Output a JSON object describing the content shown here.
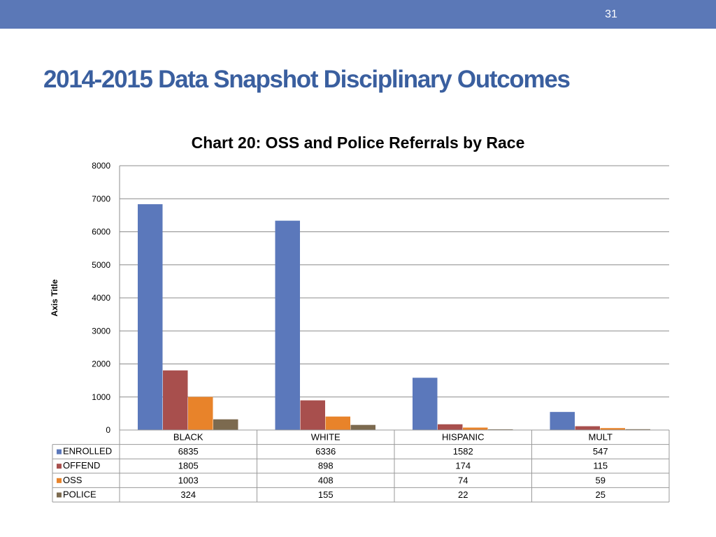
{
  "header": {
    "page_number": "31"
  },
  "slide": {
    "title": "2014-2015 Data Snapshot Disciplinary Outcomes"
  },
  "colors": {
    "ENROLLED": "#5b78bb",
    "OFFEND": "#a84f4d",
    "OSS": "#e8832a",
    "POLICE": "#7c6a4f",
    "banner": "#5b78b7",
    "title": "#3a5f9f"
  },
  "chart_data": {
    "type": "bar",
    "title": "Chart 20: OSS and Police Referrals by Race",
    "xlabel": "",
    "ylabel": "Axis Title",
    "ylim": [
      0,
      8000
    ],
    "yticks": [
      "0",
      "1000",
      "2000",
      "3000",
      "4000",
      "5000",
      "6000",
      "7000",
      "8000"
    ],
    "categories": [
      "BLACK",
      "WHITE",
      "HISPANIC",
      "MULT"
    ],
    "series": [
      {
        "name": "ENROLLED",
        "values": [
          6835,
          6336,
          1582,
          547
        ]
      },
      {
        "name": "OFFEND",
        "values": [
          1805,
          898,
          174,
          115
        ]
      },
      {
        "name": "OSS",
        "values": [
          1003,
          408,
          74,
          59
        ]
      },
      {
        "name": "POLICE",
        "values": [
          324,
          155,
          22,
          25
        ]
      }
    ],
    "table": {
      "rows": [
        [
          "6835",
          "6336",
          "1582",
          "547"
        ],
        [
          "1805",
          "898",
          "174",
          "115"
        ],
        [
          "1003",
          "408",
          "74",
          "59"
        ],
        [
          "324",
          "155",
          "22",
          "25"
        ]
      ]
    },
    "grid": true,
    "legend": "data-table"
  }
}
